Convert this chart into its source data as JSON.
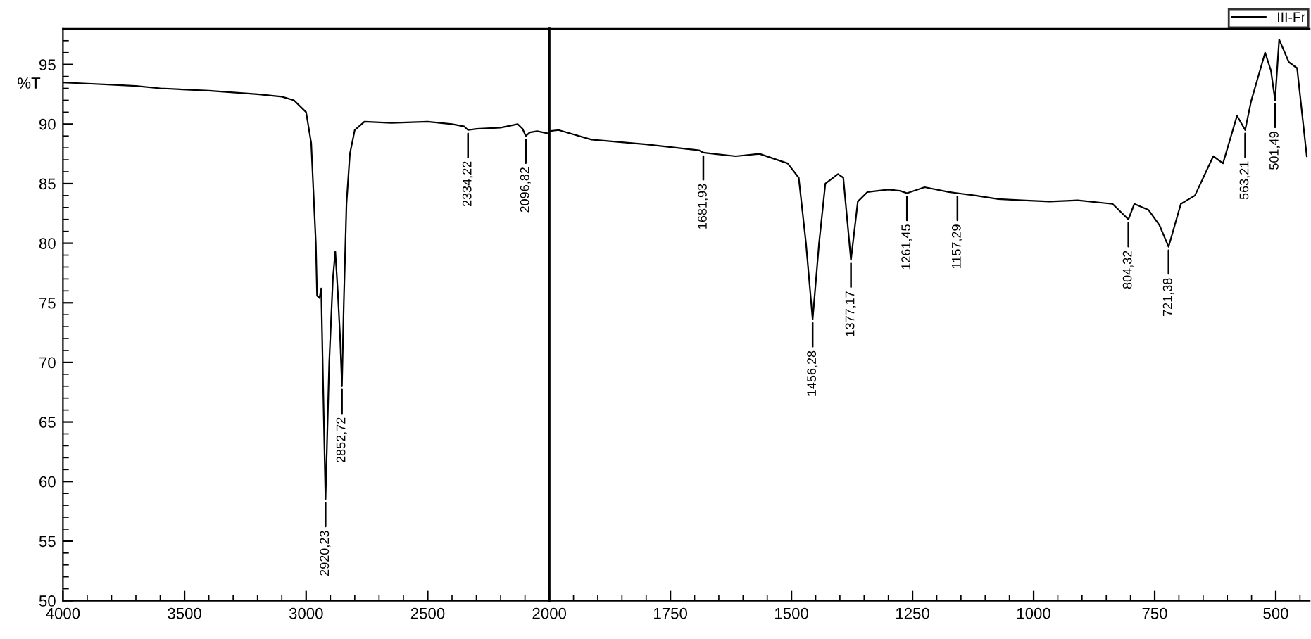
{
  "chart_data": [
    {
      "type": "line",
      "ylabel": "%T",
      "xlim": [
        4000,
        2000
      ],
      "xticks": [
        4000,
        3500,
        3000,
        2500
      ],
      "ylim": [
        50,
        98
      ],
      "yticks": [
        50,
        55,
        60,
        65,
        70,
        75,
        80,
        85,
        90,
        95
      ],
      "legend": false,
      "series": [
        {
          "color": "#000000",
          "x": [
            4000,
            3900,
            3800,
            3700,
            3600,
            3400,
            3200,
            3100,
            3050,
            3000,
            2979,
            2960,
            2955,
            2945,
            2938,
            2930,
            2920.23,
            2905,
            2890,
            2880,
            2870,
            2860,
            2852.72,
            2845,
            2834,
            2820,
            2800,
            2760,
            2650,
            2500,
            2400,
            2350,
            2334.22,
            2300,
            2200,
            2130,
            2110,
            2096.82,
            2080,
            2050,
            2000
          ],
          "values": [
            93.5,
            93.4,
            93.3,
            93.2,
            93.0,
            92.8,
            92.5,
            92.3,
            92.0,
            91.0,
            88.4,
            80.0,
            75.6,
            75.4,
            76.2,
            68.0,
            58.5,
            70.0,
            77.0,
            79.3,
            76.0,
            72.0,
            68.0,
            75.0,
            83.3,
            87.5,
            89.5,
            90.2,
            90.1,
            90.2,
            90.0,
            89.8,
            89.5,
            89.6,
            89.7,
            90.0,
            89.6,
            89.0,
            89.3,
            89.4,
            89.2
          ]
        }
      ],
      "annotations": [
        {
          "text": "2920,23",
          "x": 2920.23,
          "y": 58.5
        },
        {
          "text": "2852,72",
          "x": 2852.72,
          "y": 68.0
        },
        {
          "text": "2334,22",
          "x": 2334.22,
          "y": 89.5
        },
        {
          "text": "2096,82",
          "x": 2096.82,
          "y": 89.0
        }
      ]
    },
    {
      "type": "line",
      "xlim": [
        2000,
        430
      ],
      "xticks": [
        2000,
        1750,
        1500,
        1250,
        1000,
        750,
        500
      ],
      "ylim": [
        50,
        98
      ],
      "tick_labels": "x",
      "legend": "top right",
      "series": [
        {
          "name": "III-Fr",
          "color": "#000000",
          "x": [
            2000,
            1981,
            1913,
            1800,
            1691,
            1681.93,
            1615,
            1566,
            1508,
            1485,
            1470,
            1456.28,
            1443,
            1430,
            1404,
            1393,
            1377.17,
            1363,
            1343,
            1300,
            1276,
            1261.45,
            1225,
            1175,
            1157.29,
            1120,
            1073,
            1024,
            967,
            909,
            837,
            804.32,
            792,
            763,
            740,
            721.38,
            696,
            667,
            629,
            609,
            580,
            563.21,
            551,
            522,
            510,
            501.49,
            493,
            473,
            456,
            436
          ],
          "values": [
            89.4,
            89.5,
            88.7,
            88.3,
            87.8,
            87.6,
            87.3,
            87.5,
            86.7,
            85.5,
            80.0,
            73.6,
            80.0,
            85.0,
            85.8,
            85.5,
            78.6,
            83.5,
            84.3,
            84.5,
            84.4,
            84.2,
            84.7,
            84.3,
            84.2,
            84.0,
            83.7,
            83.6,
            83.5,
            83.6,
            83.3,
            82.0,
            83.3,
            82.8,
            81.5,
            79.7,
            83.3,
            84.0,
            87.3,
            86.7,
            90.7,
            89.5,
            91.9,
            96.0,
            94.5,
            92.0,
            97.1,
            95.2,
            94.7,
            87.3
          ]
        }
      ],
      "annotations": [
        {
          "text": "1681,93",
          "x": 1681.93,
          "y": 87.6
        },
        {
          "text": "1456,28",
          "x": 1456.28,
          "y": 73.6
        },
        {
          "text": "1377,17",
          "x": 1377.17,
          "y": 78.6
        },
        {
          "text": "1261,45",
          "x": 1261.45,
          "y": 84.2
        },
        {
          "text": "1157,29",
          "x": 1157.29,
          "y": 84.2
        },
        {
          "text": "804,32",
          "x": 804.32,
          "y": 82.0
        },
        {
          "text": "721,38",
          "x": 721.38,
          "y": 79.7
        },
        {
          "text": "563,21",
          "x": 563.21,
          "y": 89.5
        },
        {
          "text": "501,49",
          "x": 501.49,
          "y": 92.0
        }
      ]
    }
  ]
}
